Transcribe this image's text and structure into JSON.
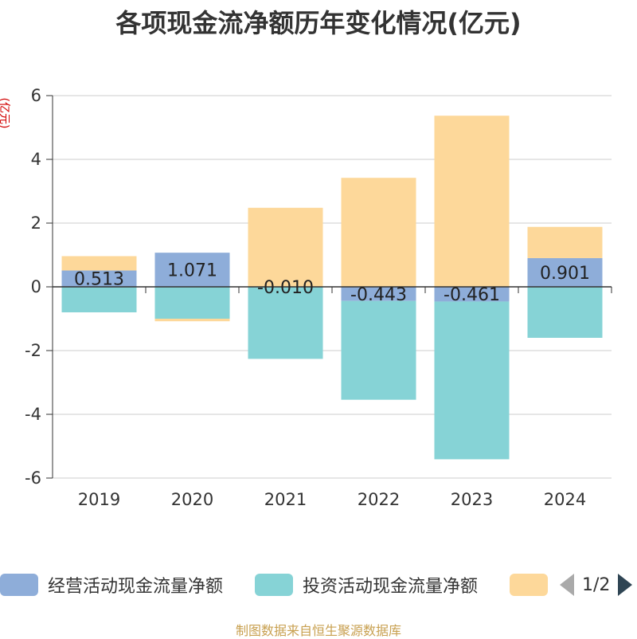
{
  "title": "各项现金流净额历年变化情况(亿元)",
  "y_unit": "(亿元)",
  "source": "制图数据来自恒生聚源数据库",
  "legend": {
    "items": [
      {
        "label": "经营活动现金流量净额",
        "color": "#8eadd9"
      },
      {
        "label": "投资活动现金流量净额",
        "color": "#86d3d6"
      },
      {
        "label": "",
        "color": "#fdd89a"
      }
    ],
    "page": "1/2"
  },
  "chart_data": {
    "type": "bar",
    "stacked": true,
    "title": "各项现金流净额历年变化情况(亿元)",
    "ylabel": "(亿元)",
    "ylim": [
      -6,
      6
    ],
    "yticks": [
      6,
      4,
      2,
      0,
      -2,
      -4,
      -6
    ],
    "categories": [
      "2019",
      "2020",
      "2021",
      "2022",
      "2023",
      "2024"
    ],
    "series": [
      {
        "name": "经营活动现金流量净额",
        "color": "#8eadd9",
        "values": [
          0.513,
          1.071,
          -0.01,
          -0.443,
          -0.461,
          0.901
        ],
        "labels": [
          "0.513",
          "1.071",
          "-0.010",
          "-0.443",
          "-0.461",
          "0.901"
        ]
      },
      {
        "name": "投资活动现金流量净额",
        "color": "#86d3d6",
        "values": [
          -0.8,
          -1.0,
          -2.25,
          -3.1,
          -4.95,
          -1.6
        ]
      },
      {
        "name": "",
        "color": "#fdd89a",
        "values": [
          0.45,
          -0.08,
          2.48,
          3.42,
          5.37,
          0.98
        ]
      }
    ]
  }
}
